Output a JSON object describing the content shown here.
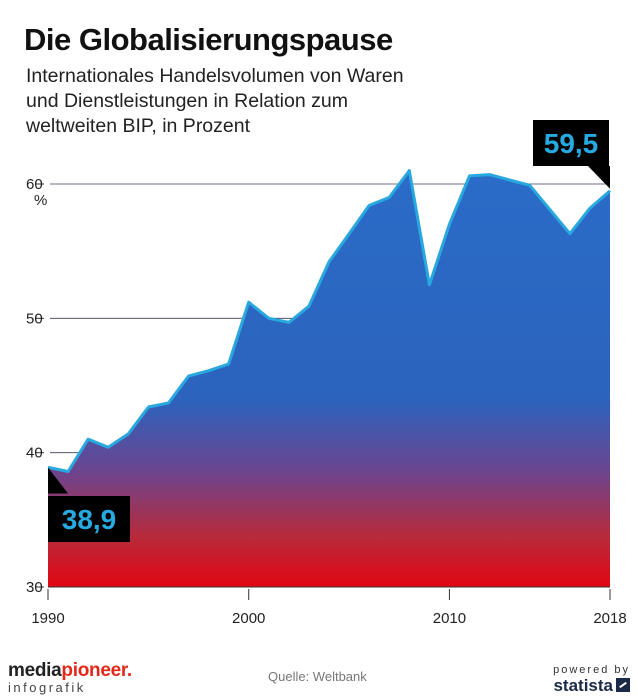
{
  "header": {
    "title": "Die Globalisierungspause",
    "subtitle_lines": [
      "Internationales Handelsvolumen von Waren",
      "und Dienstleistungen in Relation zum",
      "weltweiten BIP, in Prozent"
    ]
  },
  "chart_data": {
    "type": "area",
    "title": "Die Globalisierungspause",
    "ylabel": "%",
    "ylim": [
      30,
      60
    ],
    "yticks": [
      30,
      40,
      50,
      60
    ],
    "xticks": [
      1990,
      2000,
      2010,
      2018
    ],
    "grid": true,
    "x": [
      1990,
      1991,
      1992,
      1993,
      1994,
      1995,
      1996,
      1997,
      1998,
      1999,
      2000,
      2001,
      2002,
      2003,
      2004,
      2005,
      2006,
      2007,
      2008,
      2009,
      2010,
      2011,
      2012,
      2013,
      2014,
      2015,
      2016,
      2017,
      2018
    ],
    "values": [
      38.9,
      38.6,
      41.0,
      40.4,
      41.4,
      43.4,
      43.7,
      45.7,
      46.1,
      46.6,
      51.2,
      50.0,
      49.7,
      50.9,
      54.2,
      56.3,
      58.4,
      59.0,
      61.0,
      52.5,
      57.0,
      60.6,
      60.7,
      60.3,
      59.9,
      58.1,
      56.3,
      58.2,
      59.5
    ],
    "annotations": [
      {
        "label": "38,9",
        "year": 1990,
        "value": 38.9
      },
      {
        "label": "59,5",
        "year": 2018,
        "value": 59.5
      }
    ],
    "colors": {
      "line": "#29a8e0",
      "area_top": "#2a6cc8",
      "area_bottom": "#e30613",
      "callout_bg": "#000000",
      "callout_text": "#27aae1"
    }
  },
  "footer": {
    "logo_main_a": "media",
    "logo_main_b": "pioneer",
    "logo_main_c": ".",
    "logo_sub": "infografik",
    "source": "Quelle: Weltbank",
    "powered_by": "powered by",
    "statista": "statista"
  }
}
